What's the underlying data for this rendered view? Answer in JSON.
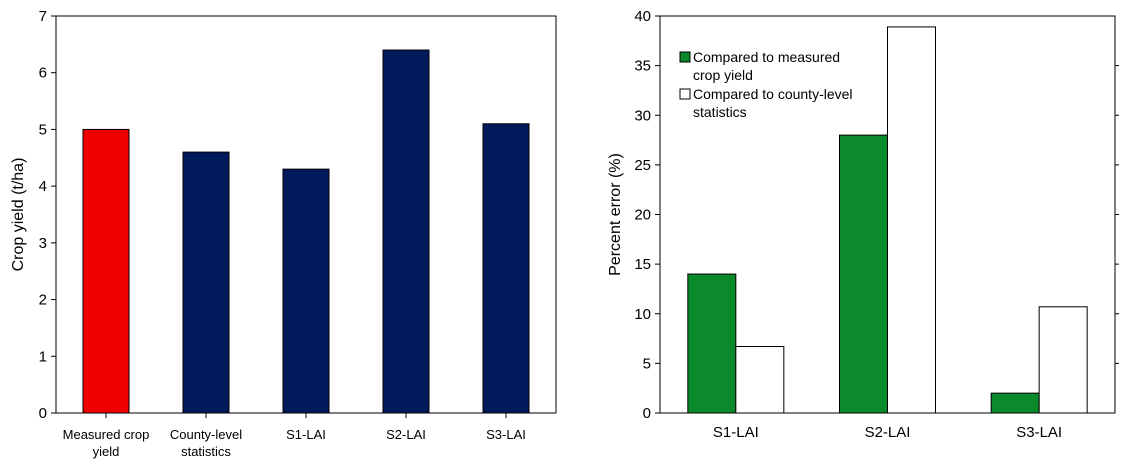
{
  "chart_data": [
    {
      "type": "bar",
      "categories": [
        [
          "Measured crop",
          "yield"
        ],
        [
          "County-level",
          "statistics"
        ],
        [
          "S1-LAI"
        ],
        [
          "S2-LAI"
        ],
        [
          "S3-LAI"
        ]
      ],
      "values": [
        5.0,
        4.6,
        4.3,
        6.4,
        5.1
      ],
      "bar_colors": [
        "#ee0000",
        "#001a5c",
        "#001a5c",
        "#001a5c",
        "#001a5c"
      ],
      "title": "",
      "xlabel": "",
      "ylabel": "Crop yield (t/ha)",
      "ylim": [
        0,
        7
      ],
      "yticks": [
        0,
        1,
        2,
        3,
        4,
        5,
        6,
        7
      ],
      "grid": false
    },
    {
      "type": "bar",
      "categories": [
        "S1-LAI",
        "S2-LAI",
        "S3-LAI"
      ],
      "series": [
        {
          "name_lines": [
            "Compared to measured",
            "crop yield"
          ],
          "values": [
            14,
            28,
            2
          ],
          "color": "#0a8a2a"
        },
        {
          "name_lines": [
            "Compared to county-level",
            "statistics"
          ],
          "values": [
            6.7,
            38.9,
            10.7
          ],
          "color": "#ffffff"
        }
      ],
      "title": "",
      "xlabel": "",
      "ylabel": "Percent error (%)",
      "ylim": [
        0,
        40
      ],
      "yticks": [
        0,
        5,
        10,
        15,
        20,
        25,
        30,
        35,
        40
      ],
      "legend": "top-left",
      "grid": false
    }
  ]
}
